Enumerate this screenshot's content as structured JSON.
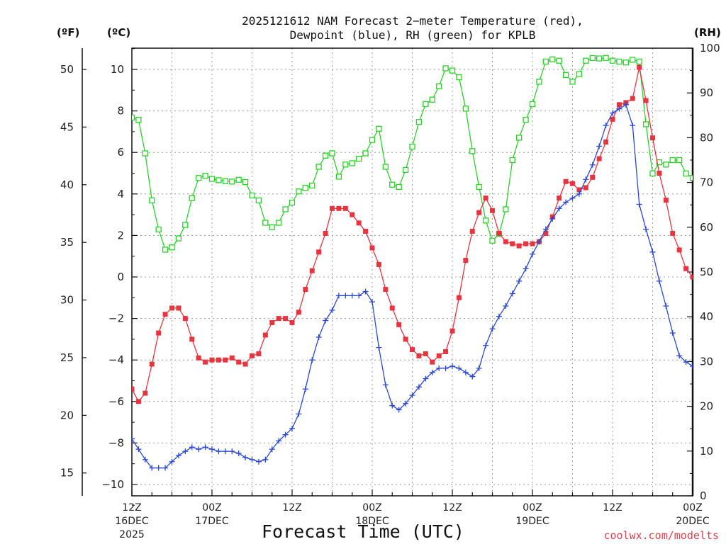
{
  "chart_data": {
    "type": "line",
    "title": "2025121612 NAM Forecast 2-meter Temperature (red), Dewpoint (blue), RH (green) for KPLB",
    "title_lines": [
      "2025121612 NAM Forecast 2−meter Temperature (red),",
      "Dewpoint (blue), RH (green) for KPLB"
    ],
    "xlabel": "Forecast Time (UTC)",
    "credit": "coolwx.com/modelts",
    "axis_units": {
      "fahrenheit": "(ºF)",
      "celsius": "(ºC)",
      "rh": "(RH)"
    },
    "x_hours_range": [
      0,
      84
    ],
    "x_ticks": [
      {
        "hour": 0,
        "line1": "12Z",
        "line2": "16DEC",
        "line3": "2025"
      },
      {
        "hour": 12,
        "line1": "00Z",
        "line2": "17DEC",
        "line3": ""
      },
      {
        "hour": 24,
        "line1": "12Z",
        "line2": "",
        "line3": ""
      },
      {
        "hour": 36,
        "line1": "00Z",
        "line2": "18DEC",
        "line3": ""
      },
      {
        "hour": 48,
        "line1": "12Z",
        "line2": "",
        "line3": ""
      },
      {
        "hour": 60,
        "line1": "00Z",
        "line2": "19DEC",
        "line3": ""
      },
      {
        "hour": 72,
        "line1": "12Z",
        "line2": "",
        "line3": ""
      },
      {
        "hour": 84,
        "line1": "00Z",
        "line2": "20DEC",
        "line3": ""
      }
    ],
    "celsius_axis": {
      "range": [
        -11,
        12
      ],
      "ticks": [
        -10,
        -8,
        -6,
        -4,
        -2,
        0,
        2,
        4,
        6,
        8,
        10
      ],
      "tick_labels": [
        "−10",
        "−8",
        "−6",
        "−4",
        "−2",
        "0",
        "2",
        "4",
        "6",
        "8",
        "10"
      ]
    },
    "fahrenheit_axis": {
      "ticks": [
        15,
        20,
        25,
        30,
        35,
        40,
        45,
        50
      ],
      "tick_labels": [
        "15",
        "20",
        "25",
        "30",
        "35",
        "40",
        "45",
        "50"
      ]
    },
    "rh_axis": {
      "range": [
        0,
        100
      ],
      "ticks": [
        0,
        10,
        20,
        30,
        40,
        50,
        60,
        70,
        80,
        90,
        100
      ],
      "tick_labels": [
        "0",
        "10",
        "20",
        "30",
        "40",
        "50",
        "60",
        "70",
        "80",
        "90",
        "100"
      ]
    },
    "series": [
      {
        "name": "2-meter Temperature",
        "units": "degC",
        "color": "#e8343f",
        "marker": "square-filled",
        "hours": [
          0,
          1,
          2,
          3,
          4,
          5,
          6,
          7,
          8,
          9,
          10,
          11,
          12,
          13,
          14,
          15,
          16,
          17,
          18,
          19,
          20,
          21,
          22,
          23,
          24,
          25,
          26,
          27,
          28,
          29,
          30,
          31,
          32,
          33,
          34,
          35,
          36,
          37,
          38,
          39,
          40,
          41,
          42,
          43,
          44,
          45,
          46,
          47,
          48,
          49,
          50,
          51,
          52,
          53,
          54,
          55,
          56,
          57,
          58,
          59,
          60,
          61,
          62,
          63,
          64,
          65,
          66,
          67,
          68,
          69,
          70,
          71,
          72,
          73,
          74,
          75,
          76,
          77,
          78,
          79,
          80,
          81,
          82,
          83,
          84
        ],
        "values": [
          -5.4,
          -6.0,
          -5.6,
          -4.2,
          -2.7,
          -1.8,
          -1.5,
          -1.5,
          -2.0,
          -3.0,
          -3.9,
          -4.1,
          -4.0,
          -4.0,
          -4.0,
          -3.9,
          -4.1,
          -4.2,
          -3.8,
          -3.7,
          -2.8,
          -2.2,
          -2.0,
          -2.0,
          -2.2,
          -1.7,
          -0.6,
          0.3,
          1.2,
          2.1,
          3.3,
          3.3,
          3.3,
          3.0,
          2.6,
          2.2,
          1.4,
          0.6,
          -0.6,
          -1.5,
          -2.3,
          -3.0,
          -3.5,
          -3.8,
          -3.7,
          -4.1,
          -3.8,
          -3.6,
          -2.6,
          -1.0,
          0.8,
          2.2,
          3.1,
          3.8,
          3.2,
          2.1,
          1.7,
          1.6,
          1.5,
          1.6,
          1.6,
          1.7,
          2.1,
          2.9,
          3.8,
          4.6,
          4.5,
          4.2,
          4.3,
          4.8,
          5.7,
          6.5,
          7.6,
          8.3,
          8.4,
          8.6,
          10.1,
          8.5,
          6.7,
          5.0,
          3.7,
          2.1,
          1.3,
          0.4,
          0.0
        ]
      },
      {
        "name": "Dewpoint",
        "units": "degC",
        "color": "#2a48d6",
        "marker": "plus",
        "hours": [
          0,
          1,
          2,
          3,
          4,
          5,
          6,
          7,
          8,
          9,
          10,
          11,
          12,
          13,
          14,
          15,
          16,
          17,
          18,
          19,
          20,
          21,
          22,
          23,
          24,
          25,
          26,
          27,
          28,
          29,
          30,
          31,
          32,
          33,
          34,
          35,
          36,
          37,
          38,
          39,
          40,
          41,
          42,
          43,
          44,
          45,
          46,
          47,
          48,
          49,
          50,
          51,
          52,
          53,
          54,
          55,
          56,
          57,
          58,
          59,
          60,
          61,
          62,
          63,
          64,
          65,
          66,
          67,
          68,
          69,
          70,
          71,
          72,
          73,
          74,
          75,
          76,
          77,
          78,
          79,
          80,
          81,
          82,
          83,
          84
        ],
        "values": [
          -7.8,
          -8.3,
          -8.8,
          -9.2,
          -9.2,
          -9.2,
          -8.9,
          -8.6,
          -8.4,
          -8.2,
          -8.3,
          -8.2,
          -8.3,
          -8.4,
          -8.4,
          -8.4,
          -8.5,
          -8.7,
          -8.8,
          -8.9,
          -8.8,
          -8.3,
          -7.9,
          -7.6,
          -7.3,
          -6.6,
          -5.4,
          -4.0,
          -2.9,
          -2.1,
          -1.6,
          -0.9,
          -0.9,
          -0.9,
          -0.9,
          -0.7,
          -1.2,
          -3.4,
          -5.2,
          -6.2,
          -6.4,
          -6.1,
          -5.7,
          -5.3,
          -4.9,
          -4.6,
          -4.4,
          -4.4,
          -4.3,
          -4.4,
          -4.6,
          -4.8,
          -4.4,
          -3.3,
          -2.5,
          -1.9,
          -1.4,
          -0.8,
          -0.2,
          0.4,
          1.1,
          1.7,
          2.3,
          2.8,
          3.3,
          3.6,
          3.8,
          4.0,
          4.7,
          5.4,
          6.3,
          7.3,
          7.9,
          8.1,
          8.3,
          7.3,
          3.5,
          2.3,
          1.2,
          -0.2,
          -1.4,
          -2.7,
          -3.8,
          -4.1,
          -4.3
        ]
      },
      {
        "name": "RH",
        "units": "percent",
        "color": "#2ad12a",
        "marker": "square-open",
        "hours": [
          0,
          1,
          2,
          3,
          4,
          5,
          6,
          7,
          8,
          9,
          10,
          11,
          12,
          13,
          14,
          15,
          16,
          17,
          18,
          19,
          20,
          21,
          22,
          23,
          24,
          25,
          26,
          27,
          28,
          29,
          30,
          31,
          32,
          33,
          34,
          35,
          36,
          37,
          38,
          39,
          40,
          41,
          42,
          43,
          44,
          45,
          46,
          47,
          48,
          49,
          50,
          51,
          52,
          53,
          54,
          55,
          56,
          57,
          58,
          59,
          60,
          61,
          62,
          63,
          64,
          65,
          66,
          67,
          68,
          69,
          70,
          71,
          72,
          73,
          74,
          75,
          76,
          77,
          78,
          79,
          80,
          81,
          82,
          83,
          84
        ],
        "values": [
          84.5,
          84.0,
          76.5,
          66.0,
          59.5,
          55.0,
          55.5,
          57.5,
          60.5,
          66.5,
          71.0,
          71.5,
          70.8,
          70.5,
          70.3,
          70.2,
          70.6,
          70.1,
          67.1,
          66.0,
          61.0,
          60.0,
          61.0,
          64.0,
          65.5,
          68.0,
          68.8,
          69.3,
          73.5,
          76.0,
          76.5,
          71.3,
          74.0,
          74.3,
          75.3,
          76.5,
          79.5,
          82.0,
          73.5,
          69.5,
          69.0,
          72.8,
          78.0,
          83.5,
          87.5,
          88.5,
          91.5,
          95.5,
          95.0,
          93.5,
          86.5,
          77.0,
          69.0,
          61.5,
          57.0,
          58.5,
          64.0,
          75.0,
          80.0,
          84.0,
          87.5,
          92.5,
          97.0,
          97.5,
          97.2,
          94.0,
          92.5,
          94.2,
          97.2,
          97.8,
          97.7,
          97.8,
          97.2,
          97.0,
          96.8,
          97.4,
          97.0,
          83.0,
          72.0,
          74.5,
          74.0,
          75.0,
          75.0,
          72.0,
          71.0
        ]
      }
    ]
  }
}
